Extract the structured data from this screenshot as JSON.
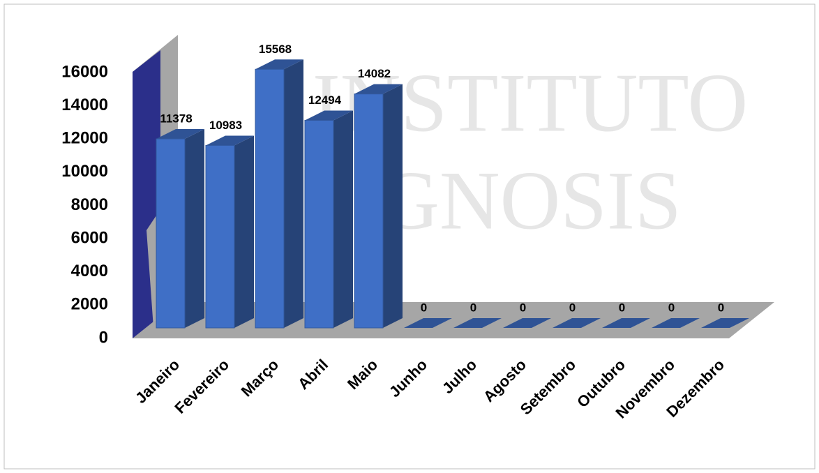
{
  "chart_data": {
    "type": "bar3d",
    "categories": [
      "Janeiro",
      "Fevereiro",
      "Março",
      "Abril",
      "Maio",
      "Junho",
      "Julho",
      "Agosto",
      "Setembro",
      "Outubro",
      "Novembro",
      "Dezembro"
    ],
    "values": [
      11378,
      10983,
      15568,
      12494,
      14082,
      0,
      0,
      0,
      0,
      0,
      0,
      0
    ],
    "color": "#3f6fc6",
    "ylim": [
      0,
      16000
    ],
    "yticks": [
      0,
      2000,
      4000,
      6000,
      8000,
      10000,
      12000,
      14000,
      16000
    ],
    "watermark": [
      "INSTITUTO",
      "GNOSIS"
    ]
  }
}
